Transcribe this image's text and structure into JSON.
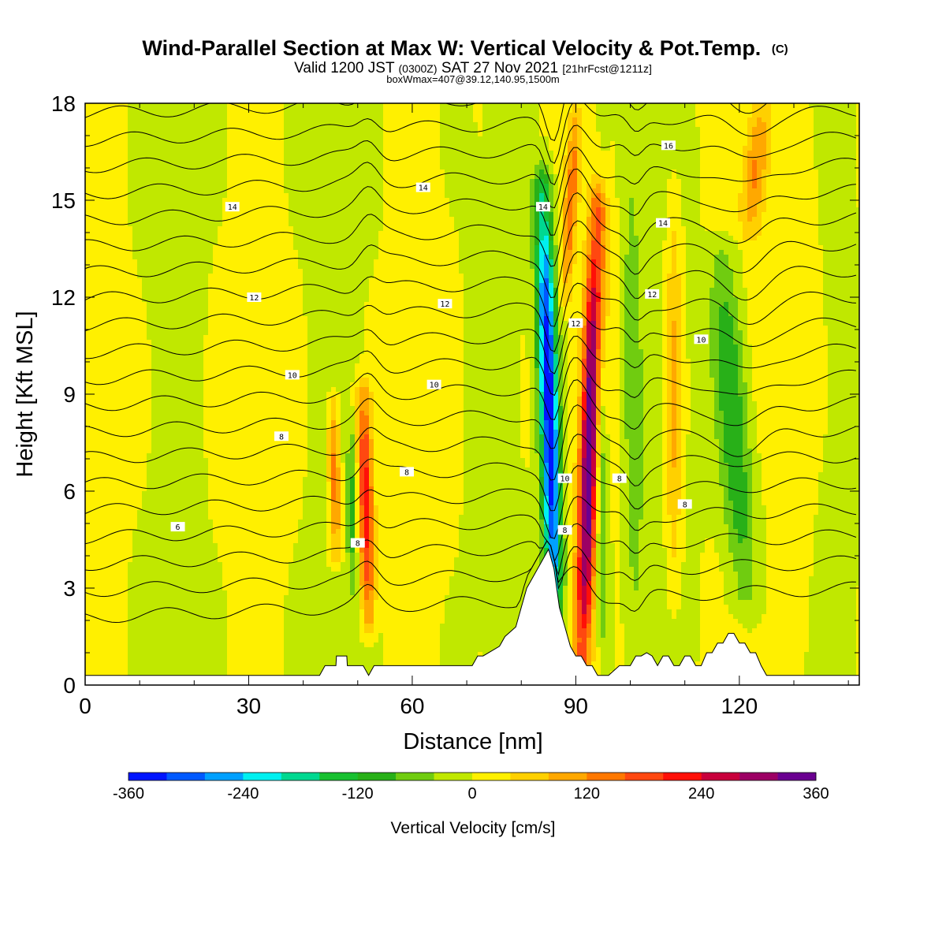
{
  "chart_data": {
    "type": "heatmap",
    "title": "Wind-Parallel Section at Max W: Vertical Velocity & Pot.Temp.",
    "title_mark": "(C)",
    "subtitle_parts": [
      "Valid 1200 JST",
      "(0300Z)",
      "SAT 27 Nov 2021",
      "[21hrFcst@1211z]"
    ],
    "subtitle2": "boxWmax=407@39.12,140.95,1500m",
    "xlabel": "Distance [nm]",
    "ylabel": "Height [Kft MSL]",
    "xlim": [
      0,
      142
    ],
    "ylim": [
      0,
      18
    ],
    "x_ticks": [
      "0",
      "30",
      "60",
      "90",
      "120"
    ],
    "y_ticks": [
      "0",
      "3",
      "6",
      "9",
      "12",
      "15",
      "18"
    ],
    "colorbar": {
      "label": "Vertical Velocity [cm/s]",
      "range": [
        -360,
        360
      ],
      "tick_labels": [
        "-360",
        "-240",
        "-120",
        "0",
        "120",
        "240",
        "360"
      ],
      "colors": [
        "#0015ff",
        "#0059ff",
        "#00a0ff",
        "#00f0f0",
        "#00d890",
        "#18c030",
        "#28b018",
        "#70cc10",
        "#c0e800",
        "#fff000",
        "#ffd000",
        "#ffa800",
        "#ff7800",
        "#ff4810",
        "#ff1008",
        "#c8003c",
        "#9c0064",
        "#6a0090"
      ]
    },
    "contour_labels": [
      "6",
      "8",
      "10",
      "12",
      "14",
      "16"
    ],
    "contour_label_positions": [
      {
        "text": "6",
        "x": 17,
        "y": 4.9
      },
      {
        "text": "8",
        "x": 36,
        "y": 7.7
      },
      {
        "text": "10",
        "x": 38,
        "y": 9.6
      },
      {
        "text": "12",
        "x": 31,
        "y": 12.0
      },
      {
        "text": "14",
        "x": 27,
        "y": 14.8
      },
      {
        "text": "8",
        "x": 59,
        "y": 6.6
      },
      {
        "text": "10",
        "x": 64,
        "y": 9.3
      },
      {
        "text": "12",
        "x": 66,
        "y": 11.8
      },
      {
        "text": "14",
        "x": 62,
        "y": 15.4
      },
      {
        "text": "8",
        "x": 50,
        "y": 4.4
      },
      {
        "text": "14",
        "x": 84,
        "y": 14.8
      },
      {
        "text": "12",
        "x": 90,
        "y": 11.2
      },
      {
        "text": "10",
        "x": 88,
        "y": 6.4
      },
      {
        "text": "8",
        "x": 88,
        "y": 4.8
      },
      {
        "text": "8",
        "x": 98,
        "y": 6.4
      },
      {
        "text": "16",
        "x": 107,
        "y": 16.7
      },
      {
        "text": "14",
        "x": 106,
        "y": 14.3
      },
      {
        "text": "12",
        "x": 104,
        "y": 12.1
      },
      {
        "text": "10",
        "x": 113,
        "y": 10.7
      },
      {
        "text": "8",
        "x": 110,
        "y": 5.6
      }
    ],
    "terrain": {
      "x": [
        0,
        43,
        44,
        46,
        46.1,
        48,
        48.1,
        51,
        52,
        53,
        71,
        72,
        73,
        76,
        77,
        79,
        80,
        81,
        82,
        83,
        84,
        85,
        86,
        87,
        88,
        89,
        90,
        91,
        92,
        93,
        94,
        96,
        98,
        100,
        101,
        102,
        103,
        104,
        105,
        106,
        107,
        108,
        109,
        110,
        111,
        112,
        113,
        114,
        115,
        116,
        117,
        118,
        119,
        120,
        121,
        122,
        123,
        124,
        125,
        126,
        142
      ],
      "y": [
        0.3,
        0.3,
        0.6,
        0.6,
        0.9,
        0.9,
        0.6,
        0.6,
        0.3,
        0.6,
        0.6,
        0.9,
        0.9,
        1.2,
        1.5,
        1.8,
        2.4,
        3.0,
        3.3,
        3.6,
        3.9,
        4.2,
        3.6,
        2.4,
        1.8,
        1.2,
        0.9,
        0.9,
        0.6,
        0.6,
        0.3,
        0.3,
        0.6,
        0.6,
        0.9,
        0.9,
        1.0,
        0.9,
        0.6,
        0.9,
        0.9,
        0.6,
        0.6,
        0.9,
        0.9,
        0.6,
        0.6,
        1.0,
        1.0,
        1.3,
        1.3,
        1.6,
        1.6,
        1.3,
        1.3,
        1.0,
        1.0,
        0.6,
        0.3,
        0.3,
        0.3
      ]
    },
    "features": [
      {
        "name": "updraft",
        "x0": 91.2,
        "x1": 94,
        "zlow": 0.8,
        "zhigh": 14.5,
        "value": 360,
        "halfwidth": 1.7
      },
      {
        "name": "downdraft",
        "x0": 86.3,
        "x1": 84,
        "zlow": 1.7,
        "zhigh": 15.0,
        "value": -360,
        "halfwidth": 1.7
      },
      {
        "name": "updraft",
        "x0": 52,
        "x1": 51,
        "zlow": 2.0,
        "zhigh": 9.0,
        "value": 220,
        "halfwidth": 1.4
      },
      {
        "name": "updraft",
        "x0": 46,
        "x1": 45.5,
        "zlow": 4.0,
        "zhigh": 8.8,
        "value": 150,
        "halfwidth": 1.1
      },
      {
        "name": "downdraft",
        "x0": 121,
        "x1": 117,
        "zlow": 3.0,
        "zhigh": 13.0,
        "value": -130,
        "halfwidth": 3.0
      },
      {
        "name": "downdraft",
        "x0": 95,
        "x1": 94,
        "zlow": 2.0,
        "zhigh": 12.5,
        "value": -120,
        "halfwidth": 1.1
      },
      {
        "name": "updraft",
        "x0": 108,
        "x1": 108,
        "zlow": 3.0,
        "zhigh": 15.0,
        "value": 90,
        "halfwidth": 1.4
      },
      {
        "name": "downdraft",
        "x0": 49,
        "x1": 49,
        "zlow": 3.0,
        "zhigh": 8.0,
        "value": -90,
        "halfwidth": 0.9
      },
      {
        "name": "updraft",
        "x0": 88,
        "x1": 90,
        "zlow": 12.0,
        "zhigh": 17.5,
        "value": 140,
        "halfwidth": 1.2
      },
      {
        "name": "updraft",
        "x0": 122,
        "x1": 124,
        "zlow": 14.0,
        "zhigh": 18.0,
        "value": 120,
        "halfwidth": 2.2
      },
      {
        "name": "downdraft",
        "x0": 101,
        "x1": 100,
        "zlow": 1.0,
        "zhigh": 17.0,
        "value": -60,
        "halfwidth": 1.6
      },
      {
        "name": "updraft",
        "x0": 130,
        "x1": 132,
        "zlow": 2.0,
        "zhigh": 17.0,
        "value": 50,
        "halfwidth": 3.0
      }
    ]
  }
}
